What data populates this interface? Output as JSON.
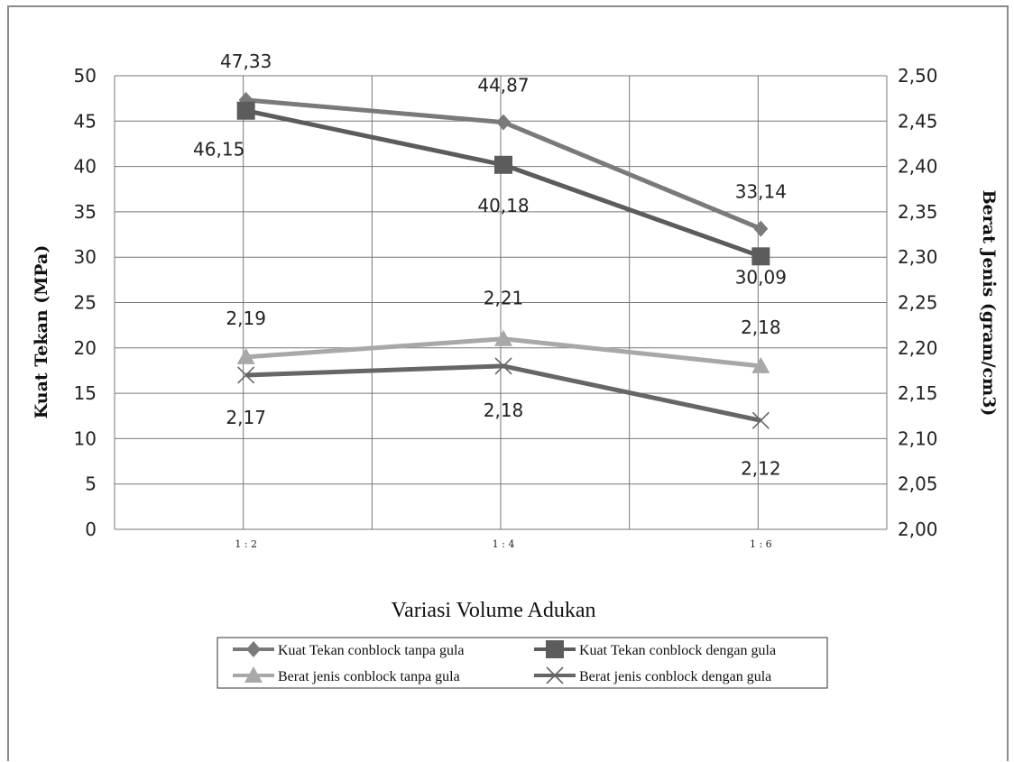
{
  "chart_data": {
    "type": "line",
    "categories": [
      "1 : 2",
      "1 : 4",
      "1 : 6"
    ],
    "xlabel": "Variasi Volume Adukan",
    "ylabel_left": "Kuat Tekan (MPa)",
    "ylabel_right": "Berat Jenis (gram/cm3)",
    "ylim_left": [
      0,
      50
    ],
    "ylim_right": [
      2.0,
      2.5
    ],
    "yticks_left": [
      "0",
      "5",
      "10",
      "15",
      "20",
      "25",
      "30",
      "35",
      "40",
      "45",
      "50"
    ],
    "yticks_right": [
      "2,00",
      "2,05",
      "2,10",
      "2,15",
      "2,20",
      "2,25",
      "2,30",
      "2,35",
      "2,40",
      "2,45",
      "2,50"
    ],
    "grid": true,
    "legend_position": "bottom",
    "series": [
      {
        "name": "Kuat Tekan conblock tanpa gula",
        "axis": "left",
        "values": [
          47.33,
          44.87,
          33.14
        ],
        "labels": [
          "47,33",
          "44,87",
          "33,14"
        ],
        "marker": "diamond",
        "color": "#7a7a7a"
      },
      {
        "name": "Kuat Tekan conblock dengan gula",
        "axis": "left",
        "values": [
          46.15,
          40.18,
          30.09
        ],
        "labels": [
          "46,15",
          "40,18",
          "30,09"
        ],
        "marker": "square",
        "color": "#5c5c5c"
      },
      {
        "name": "Berat jenis conblock tanpa gula",
        "axis": "right",
        "values": [
          2.19,
          2.21,
          2.18
        ],
        "labels": [
          "2,19",
          "2,21",
          "2,18"
        ],
        "marker": "triangle",
        "color": "#a8a8a8"
      },
      {
        "name": "Berat jenis conblock dengan gula",
        "axis": "right",
        "values": [
          2.17,
          2.18,
          2.12
        ],
        "labels": [
          "2,17",
          "2,18",
          "2,12"
        ],
        "marker": "x",
        "color": "#666666"
      }
    ]
  }
}
